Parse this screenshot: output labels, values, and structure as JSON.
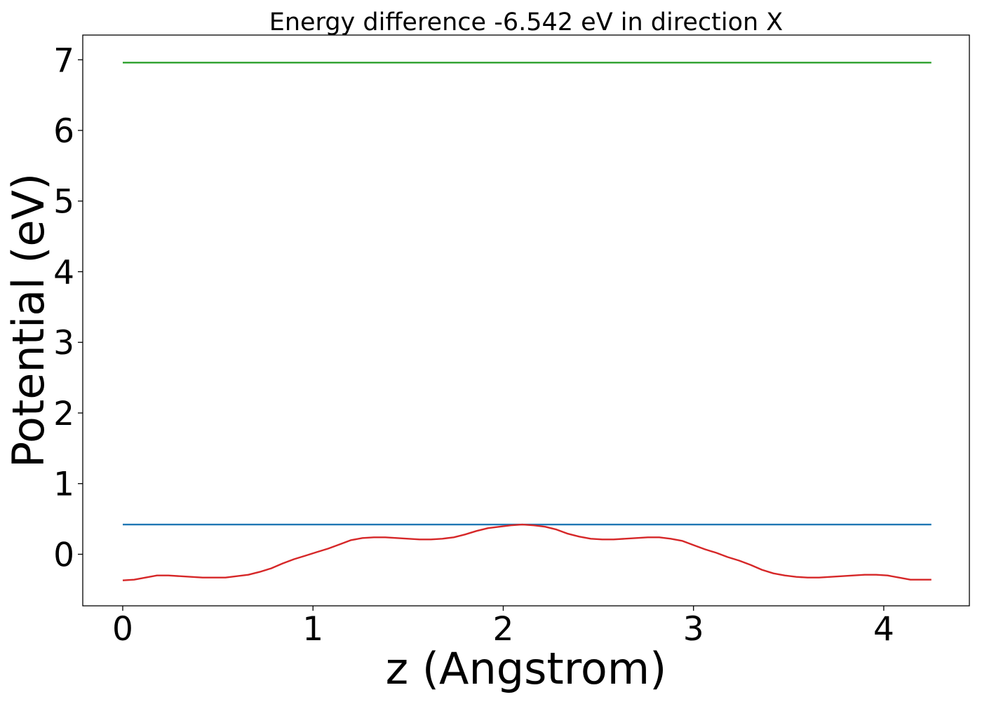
{
  "chart_data": {
    "type": "line",
    "title": "Energy difference -6.542 eV in direction X",
    "xlabel": "z (Angstrom)",
    "ylabel": "Potential (eV)",
    "xlim": [
      -0.21,
      4.45
    ],
    "ylim": [
      -0.73,
      7.35
    ],
    "xticks": [
      0,
      1,
      2,
      3,
      4
    ],
    "yticks": [
      0,
      1,
      2,
      3,
      4,
      5,
      6,
      7
    ],
    "grid": false,
    "legend": "none",
    "series": [
      {
        "color": "#2ca02c",
        "x": [
          0,
          4.25
        ],
        "y": [
          6.96,
          6.96
        ]
      },
      {
        "color": "#1f77b4",
        "x": [
          0,
          4.25
        ],
        "y": [
          0.42,
          0.42
        ]
      },
      {
        "color": "#d62728",
        "x": [
          0,
          0.06,
          0.12,
          0.18,
          0.24,
          0.3,
          0.36,
          0.42,
          0.48,
          0.54,
          0.6,
          0.66,
          0.72,
          0.78,
          0.84,
          0.9,
          0.96,
          1.02,
          1.08,
          1.14,
          1.2,
          1.26,
          1.32,
          1.38,
          1.44,
          1.5,
          1.56,
          1.62,
          1.68,
          1.74,
          1.8,
          1.86,
          1.92,
          1.98,
          2.04,
          2.1,
          2.16,
          2.22,
          2.28,
          2.34,
          2.4,
          2.46,
          2.52,
          2.58,
          2.64,
          2.7,
          2.76,
          2.82,
          2.88,
          2.94,
          3.0,
          3.06,
          3.12,
          3.18,
          3.24,
          3.3,
          3.36,
          3.42,
          3.48,
          3.54,
          3.6,
          3.66,
          3.72,
          3.78,
          3.84,
          3.9,
          3.96,
          4.02,
          4.08,
          4.14,
          4.2,
          4.25
        ],
        "y": [
          -0.37,
          -0.36,
          -0.33,
          -0.3,
          -0.3,
          -0.31,
          -0.32,
          -0.33,
          -0.33,
          -0.33,
          -0.31,
          -0.29,
          -0.25,
          -0.2,
          -0.13,
          -0.07,
          -0.02,
          0.03,
          0.08,
          0.14,
          0.2,
          0.23,
          0.24,
          0.24,
          0.23,
          0.22,
          0.21,
          0.21,
          0.22,
          0.24,
          0.28,
          0.33,
          0.37,
          0.39,
          0.41,
          0.42,
          0.41,
          0.39,
          0.35,
          0.29,
          0.25,
          0.22,
          0.21,
          0.21,
          0.22,
          0.23,
          0.24,
          0.24,
          0.22,
          0.19,
          0.13,
          0.07,
          0.02,
          -0.04,
          -0.09,
          -0.15,
          -0.22,
          -0.27,
          -0.3,
          -0.32,
          -0.33,
          -0.33,
          -0.32,
          -0.31,
          -0.3,
          -0.29,
          -0.29,
          -0.3,
          -0.33,
          -0.36,
          -0.36,
          -0.36
        ]
      }
    ]
  }
}
